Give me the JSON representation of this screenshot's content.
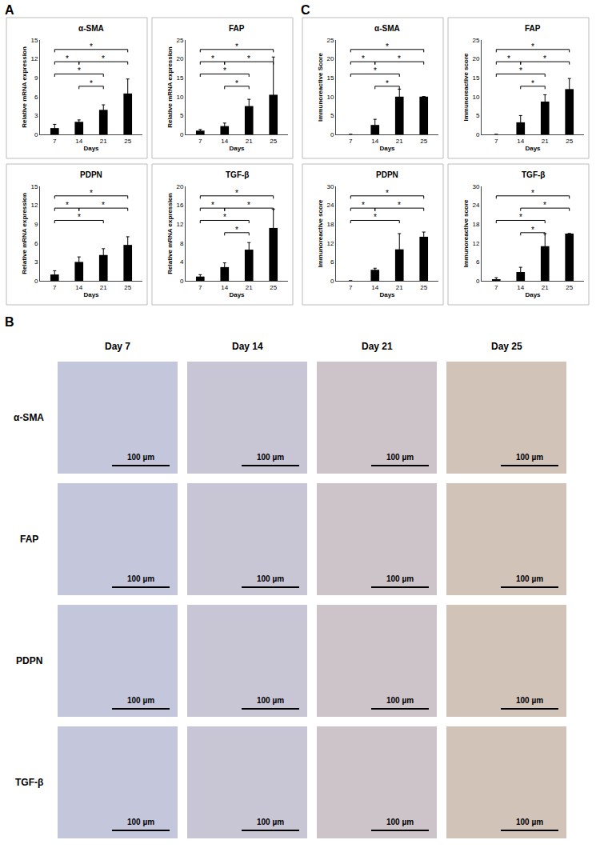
{
  "chart_data": [
    {
      "type": "bar",
      "panel": "A",
      "title": "α-SMA",
      "x_label": "Days",
      "y_label": "Relative mRNA expression",
      "categories": [
        "7",
        "14",
        "21",
        "25"
      ],
      "values": [
        1.0,
        2.0,
        3.9,
        6.5
      ],
      "errors": [
        0.6,
        0.3,
        0.8,
        2.3
      ],
      "ylim": [
        0,
        15
      ],
      "yticks": [
        0,
        3,
        6,
        9,
        12,
        15
      ],
      "color": "#000000",
      "significance": [
        {
          "from": "7",
          "to": "25",
          "label": "*"
        },
        {
          "from": "14",
          "to": "25",
          "label": "*"
        },
        {
          "from": "7",
          "to": "21",
          "label": "*"
        },
        {
          "from": "7",
          "to": "14",
          "label": "*"
        },
        {
          "from": "14",
          "to": "21",
          "label": "*"
        }
      ]
    },
    {
      "type": "bar",
      "panel": "A",
      "title": "FAP",
      "x_label": "Days",
      "y_label": "Relative mRNA expression",
      "categories": [
        "7",
        "14",
        "21",
        "25"
      ],
      "values": [
        1.0,
        2.2,
        7.5,
        10.5
      ],
      "errors": [
        0.3,
        0.8,
        1.8,
        10.0
      ],
      "ylim": [
        0,
        25
      ],
      "yticks": [
        0,
        5,
        10,
        15,
        20,
        25
      ],
      "color": "#000000",
      "significance": [
        {
          "from": "7",
          "to": "25",
          "label": "*"
        },
        {
          "from": "14",
          "to": "25",
          "label": "*"
        },
        {
          "from": "7",
          "to": "21",
          "label": "*"
        },
        {
          "from": "7",
          "to": "14",
          "label": "*"
        },
        {
          "from": "14",
          "to": "21",
          "label": "*"
        }
      ]
    },
    {
      "type": "bar",
      "panel": "A",
      "title": "PDPN",
      "x_label": "Days",
      "y_label": "Relative mRNA expression",
      "categories": [
        "7",
        "14",
        "21",
        "25"
      ],
      "values": [
        1.0,
        3.0,
        4.1,
        5.7
      ],
      "errors": [
        0.6,
        0.8,
        1.0,
        1.3
      ],
      "ylim": [
        0,
        15
      ],
      "yticks": [
        0,
        3,
        6,
        9,
        12,
        15
      ],
      "color": "#000000",
      "significance": [
        {
          "from": "7",
          "to": "25",
          "label": "*"
        },
        {
          "from": "14",
          "to": "25",
          "label": "*"
        },
        {
          "from": "7",
          "to": "21",
          "label": "*"
        },
        {
          "from": "7",
          "to": "14",
          "label": "*"
        }
      ]
    },
    {
      "type": "bar",
      "panel": "A",
      "title": "TGF-β",
      "x_label": "Days",
      "y_label": "Relative mRNA expression",
      "categories": [
        "7",
        "14",
        "21",
        "25"
      ],
      "values": [
        0.9,
        2.9,
        6.6,
        11.2
      ],
      "errors": [
        0.4,
        0.9,
        1.5,
        4.0
      ],
      "ylim": [
        0,
        20
      ],
      "yticks": [
        0,
        4,
        8,
        12,
        16,
        20
      ],
      "color": "#000000",
      "significance": [
        {
          "from": "7",
          "to": "25",
          "label": "*"
        },
        {
          "from": "14",
          "to": "25",
          "label": "*"
        },
        {
          "from": "7",
          "to": "21",
          "label": "*"
        },
        {
          "from": "7",
          "to": "14",
          "label": "*"
        },
        {
          "from": "14",
          "to": "21",
          "label": "*"
        }
      ]
    },
    {
      "type": "bar",
      "panel": "C",
      "title": "α-SMA",
      "x_label": "Days",
      "y_label": "Immunoreactive Score",
      "categories": [
        "7",
        "14",
        "21",
        "25"
      ],
      "values": [
        0,
        2.5,
        10.0,
        10.0
      ],
      "errors": [
        0,
        1.5,
        2.0,
        0
      ],
      "ylim": [
        0,
        25
      ],
      "yticks": [
        0,
        5,
        10,
        15,
        20,
        25
      ],
      "color": "#000000",
      "significance": [
        {
          "from": "7",
          "to": "25",
          "label": "*"
        },
        {
          "from": "14",
          "to": "25",
          "label": "*"
        },
        {
          "from": "7",
          "to": "21",
          "label": "*"
        },
        {
          "from": "7",
          "to": "14",
          "label": "*"
        },
        {
          "from": "14",
          "to": "21",
          "label": "*"
        }
      ]
    },
    {
      "type": "bar",
      "panel": "C",
      "title": "FAP",
      "x_label": "Days",
      "y_label": "Immunoreactive score",
      "categories": [
        "7",
        "14",
        "21",
        "25"
      ],
      "values": [
        0,
        3.2,
        8.7,
        12.0
      ],
      "errors": [
        0,
        1.8,
        1.8,
        2.8
      ],
      "ylim": [
        0,
        25
      ],
      "yticks": [
        0,
        5,
        10,
        15,
        20,
        25
      ],
      "color": "#000000",
      "significance": [
        {
          "from": "7",
          "to": "25",
          "label": "*"
        },
        {
          "from": "14",
          "to": "25",
          "label": "*"
        },
        {
          "from": "7",
          "to": "21",
          "label": "*"
        },
        {
          "from": "7",
          "to": "14",
          "label": "*"
        },
        {
          "from": "14",
          "to": "21",
          "label": "*"
        }
      ]
    },
    {
      "type": "bar",
      "panel": "C",
      "title": "PDPN",
      "x_label": "Days",
      "y_label": "Immunoreactive score",
      "categories": [
        "7",
        "14",
        "21",
        "25"
      ],
      "values": [
        0,
        3.5,
        10.0,
        14.0
      ],
      "errors": [
        0,
        0.5,
        5.0,
        1.5
      ],
      "ylim": [
        0,
        30
      ],
      "yticks": [
        0,
        6,
        12,
        18,
        24,
        30
      ],
      "color": "#000000",
      "significance": [
        {
          "from": "7",
          "to": "25",
          "label": "*"
        },
        {
          "from": "14",
          "to": "25",
          "label": "*"
        },
        {
          "from": "7",
          "to": "21",
          "label": "*"
        },
        {
          "from": "7",
          "to": "14",
          "label": "*"
        }
      ]
    },
    {
      "type": "bar",
      "panel": "C",
      "title": "TGF-β",
      "x_label": "Days",
      "y_label": "Immunoreactive score",
      "categories": [
        "7",
        "14",
        "21",
        "25"
      ],
      "values": [
        0.5,
        2.8,
        11.0,
        15.0
      ],
      "errors": [
        0.5,
        1.5,
        4.0,
        0
      ],
      "ylim": [
        0,
        30
      ],
      "yticks": [
        0,
        6,
        12,
        18,
        24,
        30
      ],
      "color": "#000000",
      "significance": [
        {
          "from": "7",
          "to": "25",
          "label": "*"
        },
        {
          "from": "14",
          "to": "25",
          "label": "*"
        },
        {
          "from": "7",
          "to": "21",
          "label": "*"
        },
        {
          "from": "14",
          "to": "21",
          "label": "*"
        }
      ]
    }
  ],
  "image_grid": {
    "panel": "B",
    "columns": [
      "Day 7",
      "Day 14",
      "Day 21",
      "Day 25"
    ],
    "rows": [
      "α-SMA",
      "FAP",
      "PDPN",
      "TGF-β"
    ],
    "scale_bar": "100 µm"
  }
}
